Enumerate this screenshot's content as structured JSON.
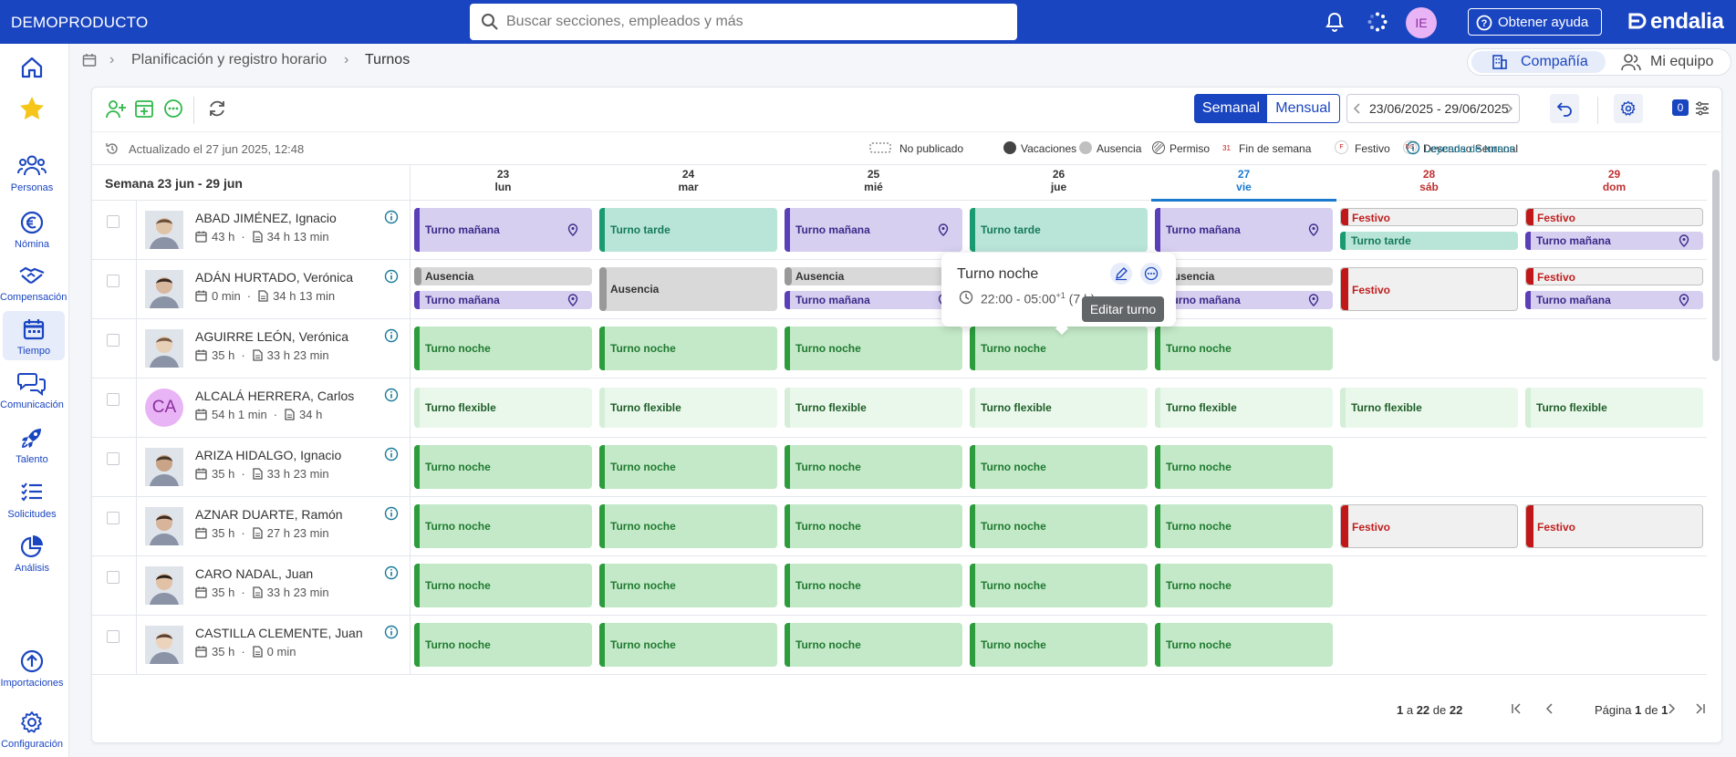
{
  "app": {
    "brand": "DEMOPRODUCTO",
    "logo": "endalia"
  },
  "search": {
    "placeholder": "Buscar secciones, empleados y más"
  },
  "header": {
    "avatar_initials": "IE",
    "help_label": "Obtener ayuda",
    "icons": [
      "bell-icon",
      "spinner-icon",
      "help-circle-icon"
    ]
  },
  "nav": {
    "items": [
      {
        "label": "",
        "icon": "home-icon"
      },
      {
        "label": "",
        "icon": "star-icon"
      },
      {
        "label": "Personas",
        "icon": "people-icon"
      },
      {
        "label": "Nómina",
        "icon": "euro-icon"
      },
      {
        "label": "Compensación",
        "icon": "handshake-icon"
      },
      {
        "label": "Tiempo",
        "icon": "calendar-icon"
      },
      {
        "label": "Comunicación",
        "icon": "chat-icon"
      },
      {
        "label": "Talento",
        "icon": "rocket-icon"
      },
      {
        "label": "Solicitudes",
        "icon": "checklist-icon"
      },
      {
        "label": "Análisis",
        "icon": "pie-chart-icon"
      },
      {
        "label": "Importaciones",
        "icon": "upload-icon"
      },
      {
        "label": "Configuración",
        "icon": "gear-icon"
      }
    ],
    "active": "Tiempo"
  },
  "breadcrumb": {
    "section": "Planificación y registro horario",
    "page": "Turnos"
  },
  "scope": {
    "company": "Compañía",
    "team": "Mi equipo"
  },
  "toolbar": {
    "view_week": "Semanal",
    "view_month": "Mensual",
    "date_range": "23/06/2025 - 29/06/2025",
    "counter": "0",
    "icons": [
      "add-employee-icon",
      "add-shift-icon",
      "more-icon",
      "refresh-icon",
      "undo-icon",
      "settings-icon",
      "filter-icon"
    ]
  },
  "info": {
    "updated": "Actualizado el 27 jun 2025, 12:48",
    "legend": {
      "no_publicado": "No publicado",
      "vacaciones": "Vacaciones",
      "ausencia": "Ausencia",
      "permiso": "Permiso",
      "fin_semana_mark": "31",
      "fin_semana": "Fin de semana",
      "festivo_mark": "F",
      "festivo": "Festivo",
      "descanso_mark": "DS",
      "descanso": "Descanso Semanal"
    },
    "legend_link": "Leyenda de turnos"
  },
  "week": {
    "label": "Semana 23 jun - 29 jun",
    "days": [
      {
        "num": "23",
        "name": "lun"
      },
      {
        "num": "24",
        "name": "mar"
      },
      {
        "num": "25",
        "name": "mié"
      },
      {
        "num": "26",
        "name": "jue"
      },
      {
        "num": "27",
        "name": "vie"
      },
      {
        "num": "28",
        "name": "sáb"
      },
      {
        "num": "29",
        "name": "dom"
      }
    ],
    "today_index": 4
  },
  "employees": [
    {
      "name": "ABAD JIMÉNEZ, Ignacio",
      "planned": "43 h",
      "worked": "34 h 13 min"
    },
    {
      "name": "ADÁN HURTADO, Verónica",
      "planned": "0 min",
      "worked": "34 h 13 min"
    },
    {
      "name": "AGUIRRE LEÓN, Verónica",
      "planned": "35 h",
      "worked": "33 h 23 min"
    },
    {
      "name": "ALCALÁ HERRERA, Carlos",
      "initials": "CA",
      "planned": "54 h 1 min",
      "worked": "34 h"
    },
    {
      "name": "ARIZA HIDALGO, Ignacio",
      "planned": "35 h",
      "worked": "33 h 23 min"
    },
    {
      "name": "AZNAR DUARTE, Ramón",
      "planned": "35 h",
      "worked": "27 h 23 min"
    },
    {
      "name": "CARO NADAL, Juan",
      "planned": "35 h",
      "worked": "33 h 23 min"
    },
    {
      "name": "CASTILLA CLEMENTE, Juan",
      "planned": "35 h",
      "worked": "0 min"
    }
  ],
  "shift_labels": {
    "manana": "Turno mañana",
    "tarde": "Turno tarde",
    "noche": "Turno noche",
    "flex": "Turno flexible",
    "ausencia": "Ausencia",
    "festivo": "Festivo"
  },
  "shifts": [
    [
      [
        "manana"
      ],
      [
        "tarde"
      ],
      [
        "manana"
      ],
      [
        "tarde"
      ],
      [
        "manana"
      ],
      [
        "festivo",
        "tarde"
      ],
      [
        "festivo",
        "manana"
      ]
    ],
    [
      [
        "ausencia",
        "manana"
      ],
      [
        "ausencia"
      ],
      [
        "ausencia",
        "manana"
      ],
      [],
      [
        "ausencia",
        "manana"
      ],
      [
        "festivo"
      ],
      [
        "festivo",
        "manana"
      ]
    ],
    [
      [
        "noche"
      ],
      [
        "noche"
      ],
      [
        "noche"
      ],
      [
        "noche"
      ],
      [
        "noche"
      ],
      [],
      []
    ],
    [
      [
        "flex"
      ],
      [
        "flex"
      ],
      [
        "flex"
      ],
      [
        "flex"
      ],
      [
        "flex"
      ],
      [
        "flex"
      ],
      [
        "flex"
      ]
    ],
    [
      [
        "noche"
      ],
      [
        "noche"
      ],
      [
        "noche"
      ],
      [
        "noche"
      ],
      [
        "noche"
      ],
      [],
      []
    ],
    [
      [
        "noche"
      ],
      [
        "noche"
      ],
      [
        "noche"
      ],
      [
        "noche"
      ],
      [
        "noche"
      ],
      [
        "festivo"
      ],
      [
        "festivo"
      ]
    ],
    [
      [
        "noche"
      ],
      [
        "noche"
      ],
      [
        "noche"
      ],
      [
        "noche"
      ],
      [
        "noche"
      ],
      [],
      []
    ],
    [
      [
        "noche"
      ],
      [
        "noche"
      ],
      [
        "noche"
      ],
      [
        "noche"
      ],
      [
        "noche"
      ],
      [],
      []
    ]
  ],
  "popover": {
    "title": "Turno noche",
    "time": "22:00 - 05:00",
    "next_day_mark": "+1",
    "duration": "(7 h)",
    "tooltip": "Editar turno"
  },
  "pager": {
    "range_from": "1",
    "range_to": "22",
    "total": "22",
    "page_label": "Página",
    "page": "1",
    "of": "de",
    "pages": "1"
  },
  "colors": {
    "primary": "#1a45c0",
    "today": "#1a7ad0",
    "weekend": "#c03030",
    "manana": "#5b3fb8",
    "tarde": "#1a9a70",
    "noche": "#2c9c3c",
    "festivo": "#c01818"
  }
}
